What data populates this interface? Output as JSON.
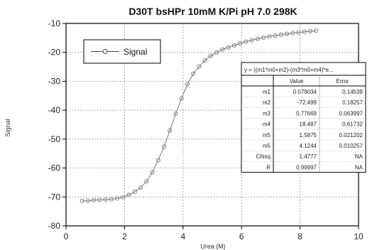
{
  "chart_data": {
    "type": "scatter",
    "title": "D30T bsHPr 10mM K/Pi pH 7.0 298K",
    "xlabel": "Urea (M)",
    "ylabel": "Signal",
    "xlim": [
      0,
      10
    ],
    "ylim": [
      -80,
      -10
    ],
    "x_ticks": [
      "0",
      "2",
      "4",
      "6",
      "8",
      "10"
    ],
    "y_ticks": [
      "-10",
      "-20",
      "-30",
      "-40",
      "-50",
      "-60",
      "-70",
      "-80"
    ],
    "grid": true,
    "legend": {
      "position": "top-left",
      "entries": [
        "Signal"
      ]
    },
    "series": [
      {
        "name": "Signal",
        "marker": "open-circle",
        "x": [
          0.55,
          0.75,
          0.95,
          1.15,
          1.35,
          1.55,
          1.75,
          1.95,
          2.15,
          2.35,
          2.55,
          2.75,
          2.95,
          3.15,
          3.35,
          3.55,
          3.75,
          3.95,
          4.15,
          4.35,
          4.55,
          4.75,
          4.95,
          5.15,
          5.35,
          5.55,
          5.75,
          5.95,
          6.15,
          6.35,
          6.55,
          6.75,
          6.95,
          7.15,
          7.35,
          7.55,
          7.75,
          7.95,
          8.15,
          8.35,
          8.55
        ],
        "y": [
          -71.4,
          -71.3,
          -71.1,
          -71.0,
          -70.9,
          -70.8,
          -70.5,
          -70.1,
          -69.3,
          -68.2,
          -66.8,
          -64.6,
          -61.5,
          -57.3,
          -52.6,
          -47.0,
          -41.2,
          -35.9,
          -31.0,
          -27.4,
          -24.9,
          -22.8,
          -21.2,
          -20.0,
          -19.0,
          -18.3,
          -17.6,
          -16.9,
          -16.3,
          -15.8,
          -15.3,
          -14.9,
          -14.5,
          -14.2,
          -13.9,
          -13.6,
          -13.3,
          -13.1,
          -12.9,
          -12.7,
          -12.5
        ]
      }
    ],
    "fit_table": {
      "equation": "y = ((m1*m0+m2)-(m3*m0+m4)*e...",
      "columns": [
        "",
        "Value",
        "Error"
      ],
      "rows": [
        [
          "m1",
          "0.079034",
          "0.14539"
        ],
        [
          "m2",
          "-72.499",
          "0.18257"
        ],
        [
          "m3",
          "0.77669",
          "0.063997"
        ],
        [
          "m4",
          "18.487",
          "0.61732"
        ],
        [
          "m5",
          "1.5875",
          "0.021202"
        ],
        [
          "m5",
          "4.1244",
          "0.010257"
        ],
        [
          "Chisq",
          "1.4777",
          "NA"
        ],
        [
          "R",
          "0.99997",
          "NA"
        ]
      ]
    }
  },
  "colors": {
    "line": "#7a7a7a",
    "grid": "#8a8a8a",
    "axis": "#000000",
    "text": "#111111"
  }
}
